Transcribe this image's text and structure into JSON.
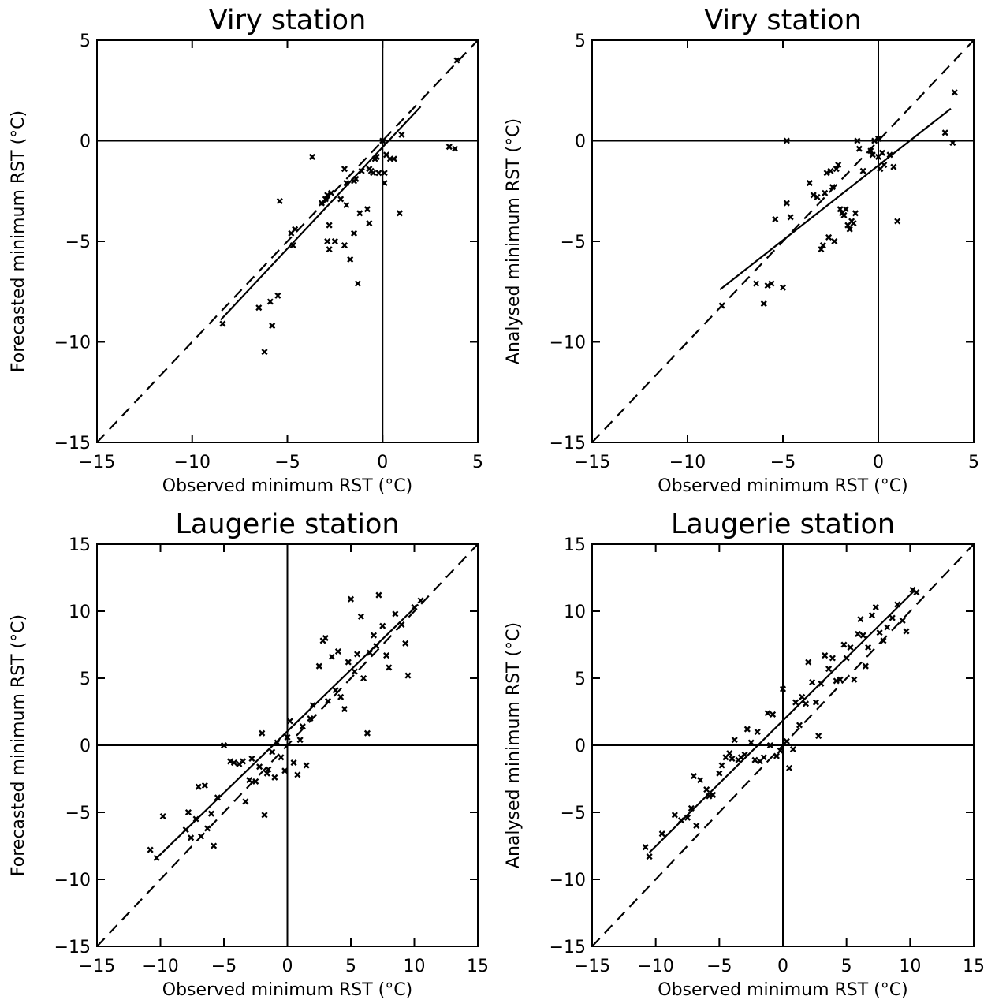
{
  "chart_data": [
    {
      "type": "scatter",
      "title": "Viry station",
      "xlabel": "Observed minimum RST (°C)",
      "ylabel": "Forecasted minimum RST (°C)",
      "xlim": [
        -15,
        5
      ],
      "ylim": [
        -15,
        5
      ],
      "xticks": [
        -15,
        -10,
        -5,
        0,
        5
      ],
      "yticks": [
        -15,
        -10,
        -5,
        0,
        5
      ],
      "reference_lines": {
        "x": 0,
        "y": 0
      },
      "identity_line": "dashed",
      "regression_line": {
        "x": [
          -8.5,
          2.0
        ],
        "y": [
          -8.9,
          1.7
        ]
      },
      "x": [
        -8.4,
        -6.5,
        -6.2,
        -5.9,
        -5.8,
        -5.4,
        -5.5,
        -4.8,
        -4.6,
        -4.7,
        -3.7,
        -3.2,
        -3.0,
        -2.9,
        -2.8,
        -2.7,
        -2.9,
        -2.8,
        -2.5,
        -2.2,
        -2.0,
        -1.9,
        -1.9,
        -2.0,
        -1.7,
        -1.5,
        -1.5,
        -1.4,
        -1.3,
        -1.2,
        -1.1,
        -0.8,
        -0.7,
        -0.7,
        -0.6,
        -0.5,
        -0.4,
        -0.3,
        -0.2,
        0.0,
        0.1,
        0.1,
        0.2,
        0.4,
        0.6,
        0.9,
        1.0,
        3.5,
        3.8,
        3.9
      ],
      "y": [
        -9.1,
        -8.3,
        -10.5,
        -8.0,
        -9.2,
        -3.0,
        -7.7,
        -4.6,
        -4.4,
        -5.2,
        -0.8,
        -3.1,
        -2.9,
        -2.7,
        -4.2,
        -2.6,
        -5.0,
        -5.4,
        -5.0,
        -2.9,
        -1.4,
        -3.2,
        -2.1,
        -5.2,
        -5.9,
        -4.6,
        -2.0,
        -1.9,
        -7.1,
        -3.6,
        -1.5,
        -3.4,
        -4.1,
        -1.4,
        -1.5,
        -1.6,
        -0.9,
        -0.8,
        -1.6,
        0.0,
        -2.1,
        -1.6,
        -0.7,
        -0.9,
        -0.9,
        -3.6,
        0.3,
        -0.3,
        -0.4,
        4.0
      ]
    },
    {
      "type": "scatter",
      "title": "Viry station",
      "xlabel": "Observed minimum RST (°C)",
      "ylabel": "Analysed minimum RST (°C)",
      "xlim": [
        -15,
        5
      ],
      "ylim": [
        -15,
        5
      ],
      "xticks": [
        -15,
        -10,
        -5,
        0,
        5
      ],
      "yticks": [
        -15,
        -10,
        -5,
        0,
        5
      ],
      "reference_lines": {
        "x": 0,
        "y": 0
      },
      "identity_line": "dashed",
      "regression_line": {
        "x": [
          -8.3,
          3.8
        ],
        "y": [
          -7.4,
          1.6
        ]
      },
      "x": [
        -8.2,
        -6.4,
        -6.0,
        -5.8,
        -5.6,
        -5.4,
        -5.0,
        -4.8,
        -4.8,
        -4.6,
        -3.6,
        -3.4,
        -3.2,
        -3.0,
        -2.9,
        -2.8,
        -2.7,
        -2.6,
        -2.5,
        -2.4,
        -2.3,
        -2.2,
        -2.1,
        -2.0,
        -1.9,
        -1.8,
        -1.7,
        -1.6,
        -1.5,
        -1.4,
        -1.3,
        -1.2,
        -1.1,
        -1.0,
        -0.8,
        -0.4,
        -0.3,
        -0.2,
        0.0,
        0.0,
        0.1,
        0.2,
        0.3,
        0.6,
        0.8,
        1.0,
        3.5,
        3.9,
        4.0
      ],
      "y": [
        -8.2,
        -7.1,
        -8.1,
        -7.2,
        -7.1,
        -3.9,
        -7.3,
        -0.0,
        -3.1,
        -3.8,
        -2.1,
        -2.7,
        -2.8,
        -5.4,
        -5.2,
        -2.6,
        -1.6,
        -4.8,
        -1.5,
        -2.3,
        -5.0,
        -1.4,
        -1.2,
        -3.4,
        -3.6,
        -3.7,
        -3.4,
        -4.2,
        -4.4,
        -4.0,
        -4.1,
        -3.6,
        0.0,
        -0.4,
        -1.5,
        -0.5,
        -0.7,
        0.0,
        -0.8,
        0.1,
        -1.4,
        -0.6,
        -1.2,
        -0.7,
        -1.3,
        -4.0,
        0.4,
        -0.1,
        2.4
      ]
    },
    {
      "type": "scatter",
      "title": "Laugerie station",
      "xlabel": "Observed minimum RST (°C)",
      "ylabel": "Forecasted minimum RST (°C)",
      "xlim": [
        -15,
        15
      ],
      "ylim": [
        -15,
        15
      ],
      "xticks": [
        -15,
        -10,
        -5,
        0,
        5,
        10,
        15
      ],
      "yticks": [
        -15,
        -10,
        -5,
        0,
        5,
        10,
        15
      ],
      "reference_lines": {
        "x": 0,
        "y": 0
      },
      "identity_line": "dashed",
      "regression_line": {
        "x": [
          -10.5,
          10.3
        ],
        "y": [
          -8.6,
          10.5
        ]
      },
      "x": [
        -10.8,
        -10.3,
        -9.8,
        -8.0,
        -7.8,
        -7.6,
        -7.2,
        -7.0,
        -6.8,
        -6.5,
        -6.3,
        -6.0,
        -5.8,
        -5.5,
        -5.0,
        -4.5,
        -4.2,
        -3.8,
        -3.5,
        -3.3,
        -3.0,
        -2.8,
        -2.5,
        -2.2,
        -2.0,
        -1.8,
        -1.6,
        -1.5,
        -1.2,
        -1.0,
        -0.8,
        -0.5,
        -0.2,
        0.0,
        0.2,
        0.5,
        0.8,
        1.0,
        1.2,
        1.5,
        1.8,
        2.0,
        2.5,
        2.8,
        3.0,
        3.2,
        3.5,
        3.8,
        4.0,
        4.2,
        4.5,
        4.8,
        5.0,
        5.3,
        5.5,
        5.8,
        6.0,
        6.3,
        6.5,
        6.8,
        7.0,
        7.2,
        7.5,
        7.8,
        8.0,
        8.5,
        9.0,
        9.3,
        9.5,
        10.0,
        10.5
      ],
      "y": [
        -7.8,
        -8.4,
        -5.3,
        -6.3,
        -5.0,
        -6.9,
        -5.5,
        -3.1,
        -6.8,
        -3.0,
        -6.2,
        -5.1,
        -7.5,
        -3.9,
        0.0,
        -1.2,
        -1.3,
        -1.4,
        -1.2,
        -4.2,
        -2.6,
        -1.0,
        -2.7,
        -1.6,
        0.9,
        -5.2,
        -2.1,
        -1.8,
        -0.5,
        -2.4,
        0.2,
        -0.9,
        -1.9,
        0.6,
        1.8,
        -1.3,
        -2.2,
        0.4,
        1.4,
        -1.5,
        2.0,
        3.0,
        5.9,
        7.8,
        8.0,
        3.3,
        6.6,
        4.1,
        7.0,
        3.6,
        2.7,
        6.2,
        10.9,
        5.5,
        6.8,
        9.6,
        5.0,
        0.9,
        6.9,
        8.2,
        7.4,
        11.2,
        8.9,
        6.7,
        5.8,
        9.8,
        9.0,
        7.6,
        5.2,
        10.3,
        10.8
      ]
    },
    {
      "type": "scatter",
      "title": "Laugerie station",
      "xlabel": "Observed minimum RST (°C)",
      "ylabel": "Analysed minimum RST (°C)",
      "xlim": [
        -15,
        15
      ],
      "ylim": [
        -15,
        15
      ],
      "xticks": [
        -15,
        -10,
        -5,
        0,
        5,
        10,
        15
      ],
      "yticks": [
        -15,
        -10,
        -5,
        0,
        5,
        10,
        15
      ],
      "reference_lines": {
        "x": 0,
        "y": 0
      },
      "identity_line": "dashed",
      "regression_line": {
        "x": [
          -10.5,
          10.3
        ],
        "y": [
          -8.0,
          11.5
        ]
      },
      "x": [
        -10.8,
        -10.5,
        -9.5,
        -8.5,
        -8.0,
        -7.5,
        -7.2,
        -7.0,
        -6.8,
        -6.5,
        -6.0,
        -5.8,
        -5.5,
        -5.0,
        -4.8,
        -4.5,
        -4.2,
        -4.0,
        -3.8,
        -3.5,
        -3.3,
        -3.0,
        -2.8,
        -2.5,
        -2.2,
        -2.0,
        -1.8,
        -1.5,
        -1.2,
        -1.0,
        -0.8,
        -0.5,
        -0.2,
        0.0,
        0.3,
        0.5,
        0.8,
        1.0,
        1.3,
        1.5,
        1.8,
        2.0,
        2.3,
        2.6,
        2.8,
        3.0,
        3.3,
        3.6,
        3.9,
        4.2,
        4.5,
        4.8,
        5.0,
        5.3,
        5.6,
        5.9,
        6.1,
        6.3,
        6.5,
        6.7,
        7.0,
        7.3,
        7.6,
        7.9,
        8.2,
        8.6,
        9.0,
        9.4,
        9.7,
        10.2,
        10.5
      ],
      "y": [
        -7.6,
        -8.3,
        -6.6,
        -5.2,
        -5.6,
        -5.4,
        -4.7,
        -2.3,
        -6.0,
        -2.6,
        -3.3,
        -3.8,
        -3.7,
        -2.1,
        -1.5,
        -0.9,
        -0.6,
        -1.0,
        0.4,
        -1.1,
        -0.9,
        -0.7,
        1.2,
        0.2,
        -1.1,
        1.0,
        -1.2,
        -0.9,
        2.4,
        0.0,
        2.3,
        -0.8,
        -0.4,
        4.2,
        0.3,
        -1.7,
        -0.3,
        3.2,
        1.5,
        3.6,
        3.1,
        6.2,
        4.7,
        3.2,
        0.7,
        4.6,
        6.7,
        5.7,
        6.5,
        4.8,
        4.9,
        7.5,
        6.5,
        7.3,
        4.9,
        8.3,
        9.4,
        8.2,
        5.9,
        7.3,
        9.7,
        10.3,
        8.4,
        7.8,
        8.8,
        9.5,
        10.5,
        9.3,
        8.5,
        11.6,
        11.4
      ]
    }
  ]
}
